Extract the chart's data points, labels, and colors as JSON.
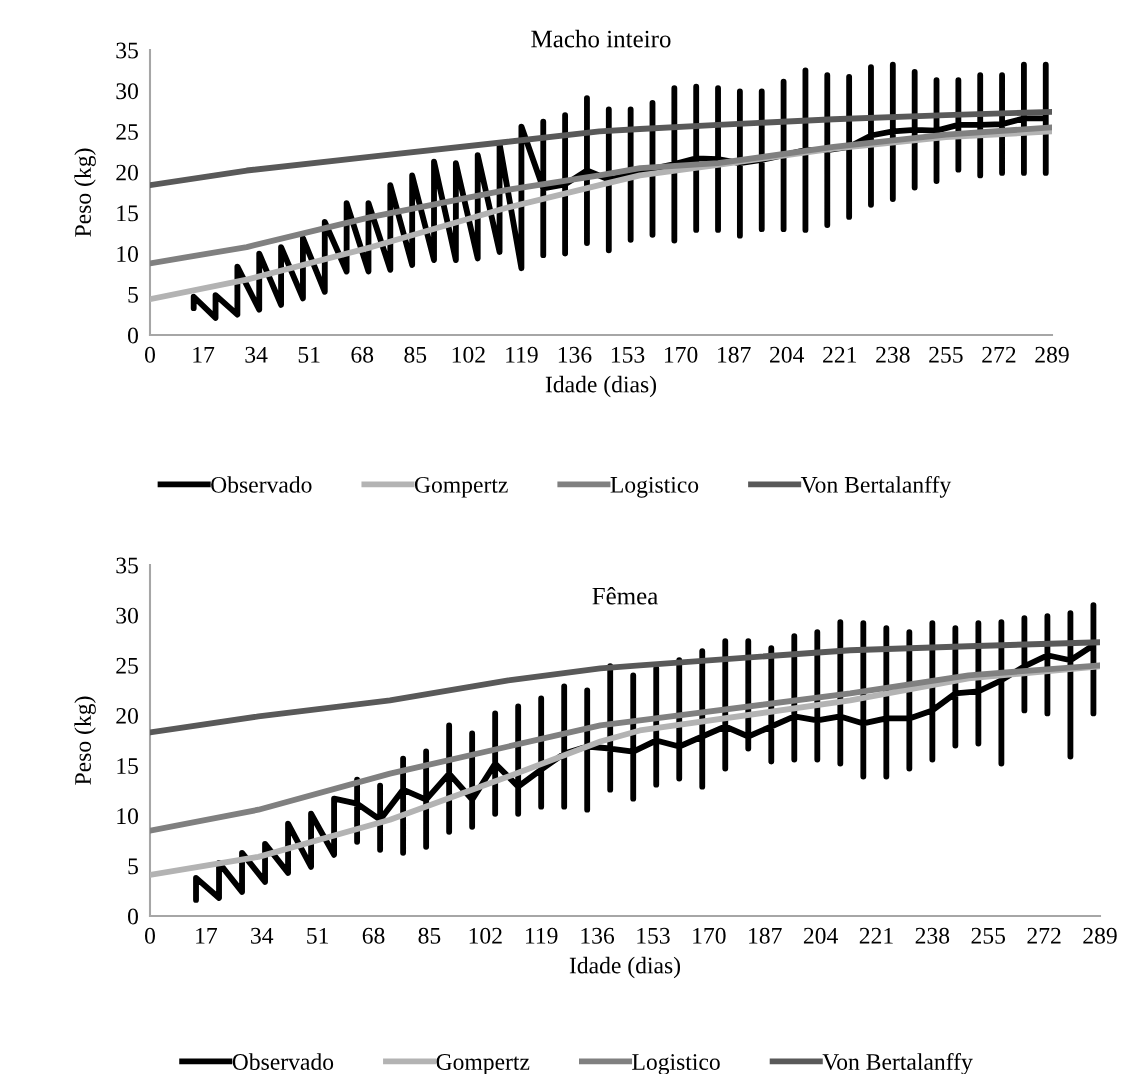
{
  "chart_data": [
    {
      "type": "line",
      "title": "Macho inteiro",
      "xlabel": "Idade (dias)",
      "ylabel": "Peso (kg)",
      "xlim": [
        0,
        289
      ],
      "xticks": [
        0,
        17,
        34,
        51,
        68,
        85,
        102,
        119,
        136,
        153,
        170,
        187,
        204,
        221,
        238,
        255,
        272,
        289
      ],
      "ylim": [
        0,
        35
      ],
      "yticks": [
        0,
        5,
        10,
        15,
        20,
        25,
        30,
        35
      ],
      "grid": false,
      "legend": "bottom",
      "marker": "none",
      "line_style": "solid",
      "series": [
        {
          "name": "Observado",
          "color": "#000000",
          "x": [
            14,
            14,
            21,
            21,
            28,
            28,
            35,
            35,
            42,
            42,
            49,
            49,
            56,
            56,
            63,
            63,
            70,
            70,
            77,
            77,
            84,
            84,
            91,
            91,
            98,
            98,
            105,
            105,
            112,
            112,
            119,
            119,
            126,
            126,
            126,
            126,
            133,
            133,
            133,
            133,
            140,
            140,
            140,
            140,
            147,
            147,
            147,
            147,
            154,
            154,
            154,
            154,
            161,
            161,
            161,
            161,
            168,
            168,
            168,
            168,
            175,
            175,
            175,
            175,
            182,
            182,
            182,
            182,
            189,
            189,
            189,
            189,
            196,
            196,
            196,
            196,
            203,
            203,
            203,
            203,
            210,
            210,
            210,
            210,
            217,
            217,
            217,
            217,
            224,
            224,
            224,
            224,
            231,
            231,
            231,
            231,
            238,
            238,
            238,
            238,
            245,
            245,
            245,
            245,
            252,
            252,
            252,
            252,
            259,
            259,
            259,
            259,
            266,
            266,
            266,
            266,
            273,
            273,
            273,
            273,
            280,
            280,
            280,
            280,
            287,
            287,
            287,
            287
          ],
          "values": [
            3.3,
            4.7,
            2.1,
            4.9,
            2.5,
            8.4,
            3.1,
            10.0,
            3.7,
            10.8,
            4.5,
            11.9,
            5.3,
            13.9,
            7.8,
            16.2,
            7.8,
            16.2,
            8.0,
            18.4,
            8.6,
            19.6,
            9.2,
            21.3,
            9.2,
            21.1,
            9.4,
            22.1,
            10.2,
            23.5,
            8.2,
            25.6,
            18.0,
            26.2,
            9.8,
            18.0,
            18.5,
            27.0,
            10.0,
            18.5,
            20.2,
            29.1,
            11.3,
            20.2,
            19.1,
            27.7,
            10.4,
            19.1,
            19.7,
            27.7,
            11.7,
            19.7,
            20.4,
            28.5,
            12.3,
            20.4,
            21.0,
            30.3,
            11.6,
            21.0,
            21.7,
            30.5,
            12.9,
            21.7,
            21.6,
            30.3,
            12.9,
            21.6,
            21.1,
            29.9,
            12.2,
            21.1,
            21.5,
            29.9,
            13.0,
            21.5,
            22.1,
            31.1,
            13.0,
            22.1,
            22.7,
            32.5,
            12.9,
            22.7,
            22.7,
            31.9,
            13.5,
            22.7,
            23.1,
            31.7,
            14.5,
            23.1,
            24.5,
            32.9,
            16.0,
            24.5,
            25.0,
            33.2,
            16.7,
            25.0,
            25.2,
            32.3,
            18.1,
            25.2,
            25.1,
            31.3,
            18.9,
            25.1,
            25.8,
            31.3,
            20.3,
            25.8,
            25.8,
            31.9,
            19.6,
            25.8,
            25.9,
            31.9,
            19.9,
            25.9,
            26.6,
            33.2,
            19.9,
            26.6,
            26.6,
            33.2,
            19.9,
            26.6
          ]
        },
        {
          "name": "Gompertz",
          "color": "#b3b3b3",
          "x": [
            0,
            31,
            71,
            114,
            144,
            157,
            182,
            219,
            255,
            289
          ],
          "values": [
            4.4,
            6.8,
            10.8,
            15.6,
            18.4,
            19.6,
            20.9,
            22.9,
            24.3,
            25.0
          ]
        },
        {
          "name": "Logistico",
          "color": "#808080",
          "x": [
            0,
            31,
            71,
            114,
            144,
            157,
            182,
            219,
            255,
            289
          ],
          "values": [
            8.8,
            10.8,
            14.5,
            17.8,
            19.6,
            20.5,
            21.1,
            23.1,
            24.6,
            25.5
          ]
        },
        {
          "name": "Von Bertalanffy",
          "color": "#595959",
          "x": [
            0,
            31,
            71,
            114,
            144,
            157,
            182,
            219,
            255,
            289
          ],
          "values": [
            18.4,
            20.2,
            21.9,
            23.7,
            25.0,
            25.3,
            25.8,
            26.5,
            27.0,
            27.4
          ]
        }
      ]
    },
    {
      "type": "line",
      "title": "Fêmea",
      "xlabel": "Idade (dias)",
      "ylabel": "Peso (kg)",
      "xlim": [
        0,
        289
      ],
      "xticks": [
        0,
        17,
        34,
        51,
        68,
        85,
        102,
        119,
        136,
        153,
        170,
        187,
        204,
        221,
        238,
        255,
        272,
        289
      ],
      "ylim": [
        0,
        35
      ],
      "yticks": [
        0,
        5,
        10,
        15,
        20,
        25,
        30,
        35
      ],
      "grid": false,
      "legend": "bottom",
      "marker": "none",
      "line_style": "solid",
      "series": [
        {
          "name": "Observado",
          "color": "#000000",
          "x": [
            14,
            14,
            21,
            21,
            28,
            28,
            35,
            35,
            42,
            42,
            49,
            49,
            56,
            56,
            63,
            63,
            63,
            63,
            70,
            70,
            70,
            70,
            77,
            77,
            77,
            77,
            84,
            84,
            84,
            84,
            91,
            91,
            91,
            91,
            98,
            98,
            98,
            98,
            105,
            105,
            105,
            105,
            112,
            112,
            112,
            112,
            119,
            119,
            119,
            119,
            126,
            126,
            126,
            126,
            133,
            133,
            133,
            133,
            140,
            140,
            140,
            140,
            147,
            147,
            147,
            147,
            154,
            154,
            154,
            154,
            161,
            161,
            161,
            161,
            168,
            168,
            168,
            168,
            175,
            175,
            175,
            175,
            182,
            182,
            182,
            182,
            189,
            189,
            189,
            189,
            196,
            196,
            196,
            196,
            203,
            203,
            203,
            203,
            210,
            210,
            210,
            210,
            217,
            217,
            217,
            217,
            224,
            224,
            224,
            224,
            231,
            231,
            231,
            231,
            238,
            238,
            238,
            238,
            245,
            245,
            245,
            245,
            252,
            252,
            252,
            252,
            259,
            259,
            259,
            259,
            266,
            266,
            266,
            266,
            273,
            273,
            273,
            273,
            280,
            280,
            280,
            280,
            287,
            287,
            287,
            287
          ],
          "values": [
            1.6,
            3.8,
            1.8,
            5.3,
            2.4,
            6.3,
            3.4,
            7.2,
            4.3,
            9.2,
            4.9,
            10.2,
            6.1,
            11.7,
            11.2,
            13.6,
            7.4,
            11.2,
            9.6,
            13.0,
            6.6,
            9.6,
            12.6,
            15.7,
            6.3,
            12.6,
            11.6,
            16.4,
            6.9,
            11.6,
            14.2,
            19.0,
            8.4,
            14.2,
            11.6,
            18.2,
            8.9,
            11.6,
            15.2,
            20.2,
            10.2,
            15.2,
            12.9,
            20.9,
            10.2,
            12.9,
            14.6,
            21.7,
            10.9,
            14.6,
            16.2,
            22.9,
            10.9,
            16.2,
            16.9,
            22.5,
            10.6,
            16.9,
            16.7,
            24.9,
            12.6,
            16.7,
            16.4,
            24.0,
            11.7,
            16.4,
            17.5,
            24.7,
            13.1,
            17.5,
            16.9,
            25.5,
            13.7,
            16.9,
            17.9,
            26.4,
            12.9,
            17.9,
            18.9,
            27.4,
            14.7,
            18.9,
            17.9,
            27.4,
            16.7,
            17.9,
            18.9,
            26.7,
            15.4,
            18.9,
            19.9,
            27.9,
            15.6,
            19.9,
            19.5,
            28.3,
            15.6,
            19.5,
            19.9,
            29.3,
            15.2,
            19.9,
            19.2,
            29.2,
            13.9,
            19.2,
            19.7,
            28.7,
            13.9,
            19.7,
            19.7,
            28.3,
            14.7,
            19.7,
            20.5,
            29.2,
            15.6,
            20.5,
            22.2,
            28.7,
            17.0,
            22.2,
            22.4,
            29.2,
            17.2,
            22.4,
            23.5,
            29.3,
            15.2,
            23.5,
            24.9,
            29.7,
            20.5,
            24.9,
            26.0,
            29.9,
            20.2,
            26.0,
            25.5,
            30.2,
            15.9,
            25.5,
            27.0,
            31.0,
            20.2,
            27.0
          ]
        },
        {
          "name": "Gompertz",
          "color": "#b3b3b3",
          "x": [
            0,
            33,
            73,
            109,
            137,
            149,
            213,
            249,
            289
          ],
          "values": [
            4.1,
            5.9,
            9.6,
            13.9,
            17.4,
            18.5,
            21.5,
            23.7,
            24.9
          ]
        },
        {
          "name": "Logistico",
          "color": "#808080",
          "x": [
            0,
            33,
            73,
            109,
            137,
            149,
            213,
            249,
            289
          ],
          "values": [
            8.5,
            10.6,
            14.2,
            16.9,
            19.0,
            19.5,
            22.2,
            24.0,
            25.0
          ]
        },
        {
          "name": "Von Bertalanffy",
          "color": "#595959",
          "x": [
            0,
            33,
            73,
            109,
            137,
            149,
            213,
            249,
            289
          ],
          "values": [
            18.3,
            19.9,
            21.5,
            23.5,
            24.7,
            25.0,
            26.5,
            26.9,
            27.3
          ]
        }
      ]
    }
  ]
}
